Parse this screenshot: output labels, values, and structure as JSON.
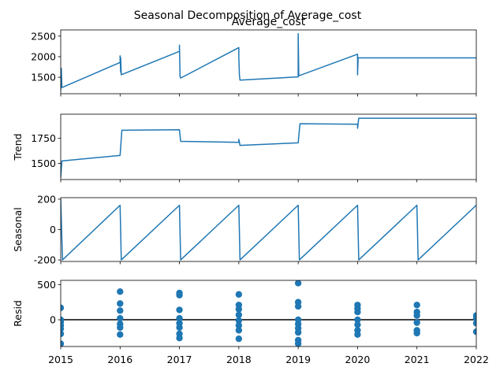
{
  "figure": {
    "suptitle": "Seasonal Decomposition of Average_cost",
    "colors": {
      "series": "#1f77b4",
      "axis": "#000000"
    }
  },
  "chart_data": [
    {
      "type": "line",
      "id": "observed",
      "title": "Average_cost",
      "ylabel": "",
      "xlim": [
        2015.0,
        2022.0
      ],
      "ylim": [
        1100,
        2650
      ],
      "yticks": [
        1500,
        2000,
        2500
      ],
      "xticks": [
        2015,
        2016,
        2017,
        2018,
        2019,
        2020,
        2021,
        2022
      ],
      "show_xtick_labels": false,
      "x": [
        2015.0,
        2015.01,
        2015.02,
        2016.0,
        2016.0,
        2016.01,
        2016.01,
        2016.02,
        2017.0,
        2017.0,
        2017.01,
        2017.02,
        2018.0,
        2018.0,
        2018.01,
        2018.02,
        2019.0,
        2019.0,
        2019.01,
        2019.02,
        2020.0,
        2020.0,
        2020.01,
        2020.02,
        2021.0,
        2022.0
      ],
      "y": [
        1180,
        1720,
        1250,
        1860,
        2020,
        1620,
        1980,
        1560,
        2130,
        2280,
        1520,
        1480,
        2220,
        1980,
        1550,
        1430,
        1510,
        2560,
        1560,
        1540,
        2060,
        1560,
        1980,
        1970,
        1970,
        1970
      ]
    },
    {
      "type": "line",
      "id": "trend",
      "title": "",
      "ylabel": "Trend",
      "xlim": [
        2015.0,
        2022.0
      ],
      "ylim": [
        1340,
        1990
      ],
      "yticks": [
        1500,
        1750
      ],
      "xticks": [
        2015,
        2016,
        2017,
        2018,
        2019,
        2020,
        2021,
        2022
      ],
      "show_xtick_labels": false,
      "x": [
        2015.0,
        2015.02,
        2016.0,
        2016.03,
        2017.0,
        2017.02,
        2018.0,
        2018.0,
        2018.02,
        2019.0,
        2019.03,
        2020.0,
        2020.0,
        2020.02,
        2021.0,
        2022.0
      ],
      "y": [
        1360,
        1525,
        1580,
        1830,
        1835,
        1720,
        1710,
        1740,
        1680,
        1705,
        1895,
        1890,
        1850,
        1950,
        1950,
        1950
      ]
    },
    {
      "type": "line",
      "id": "seasonal",
      "title": "",
      "ylabel": "Seasonal",
      "xlim": [
        2015.0,
        2022.0
      ],
      "ylim": [
        -210,
        210
      ],
      "yticks": [
        -200,
        0,
        200
      ],
      "xticks": [
        2015,
        2016,
        2017,
        2018,
        2019,
        2020,
        2021,
        2022
      ],
      "show_xtick_labels": false,
      "x": [
        2015.0,
        2015.03,
        2016.0,
        2016.02,
        2017.0,
        2017.02,
        2018.0,
        2018.02,
        2019.0,
        2019.02,
        2020.0,
        2020.02,
        2021.0,
        2021.02,
        2022.0
      ],
      "y": [
        200,
        -200,
        160,
        -200,
        160,
        -200,
        160,
        -200,
        160,
        -200,
        160,
        -200,
        160,
        -200,
        160
      ]
    },
    {
      "type": "scatter",
      "id": "resid",
      "title": "",
      "ylabel": "Resid",
      "xlim": [
        2015.0,
        2022.0
      ],
      "ylim": [
        -380,
        560
      ],
      "yticks": [
        0,
        500
      ],
      "xticks": [
        2015,
        2016,
        2017,
        2018,
        2019,
        2020,
        2021,
        2022
      ],
      "xtick_labels": [
        "2015",
        "2016",
        "2017",
        "2018",
        "2019",
        "2020",
        "2021",
        "2022"
      ],
      "show_xtick_labels": true,
      "zero_line": true,
      "x": [
        2015.0,
        2015.0,
        2015.0,
        2015.0,
        2015.0,
        2015.0,
        2015.0,
        2016.0,
        2016.0,
        2016.0,
        2016.0,
        2016.0,
        2016.0,
        2016.0,
        2017.0,
        2017.0,
        2017.0,
        2017.0,
        2017.0,
        2017.0,
        2017.0,
        2017.0,
        2018.0,
        2018.0,
        2018.0,
        2018.0,
        2018.0,
        2018.0,
        2018.0,
        2018.0,
        2019.0,
        2019.0,
        2019.0,
        2019.0,
        2019.0,
        2019.0,
        2019.0,
        2019.0,
        2019.0,
        2020.0,
        2020.0,
        2020.0,
        2020.0,
        2020.0,
        2020.0,
        2020.0,
        2021.0,
        2021.0,
        2021.0,
        2021.0,
        2021.0,
        2021.0,
        2022.0,
        2022.0,
        2022.0,
        2022.0
      ],
      "y": [
        170,
        0,
        -30,
        -80,
        -130,
        -200,
        -340,
        400,
        230,
        130,
        20,
        -60,
        -110,
        -210,
        380,
        350,
        140,
        20,
        -50,
        -110,
        -200,
        -260,
        360,
        210,
        150,
        70,
        -10,
        -80,
        -150,
        -270,
        520,
        250,
        190,
        0,
        -60,
        -120,
        -180,
        -290,
        -340,
        210,
        160,
        110,
        0,
        -70,
        -150,
        -210,
        210,
        110,
        60,
        -40,
        -150,
        -190,
        60,
        20,
        -50,
        -170
      ]
    }
  ]
}
